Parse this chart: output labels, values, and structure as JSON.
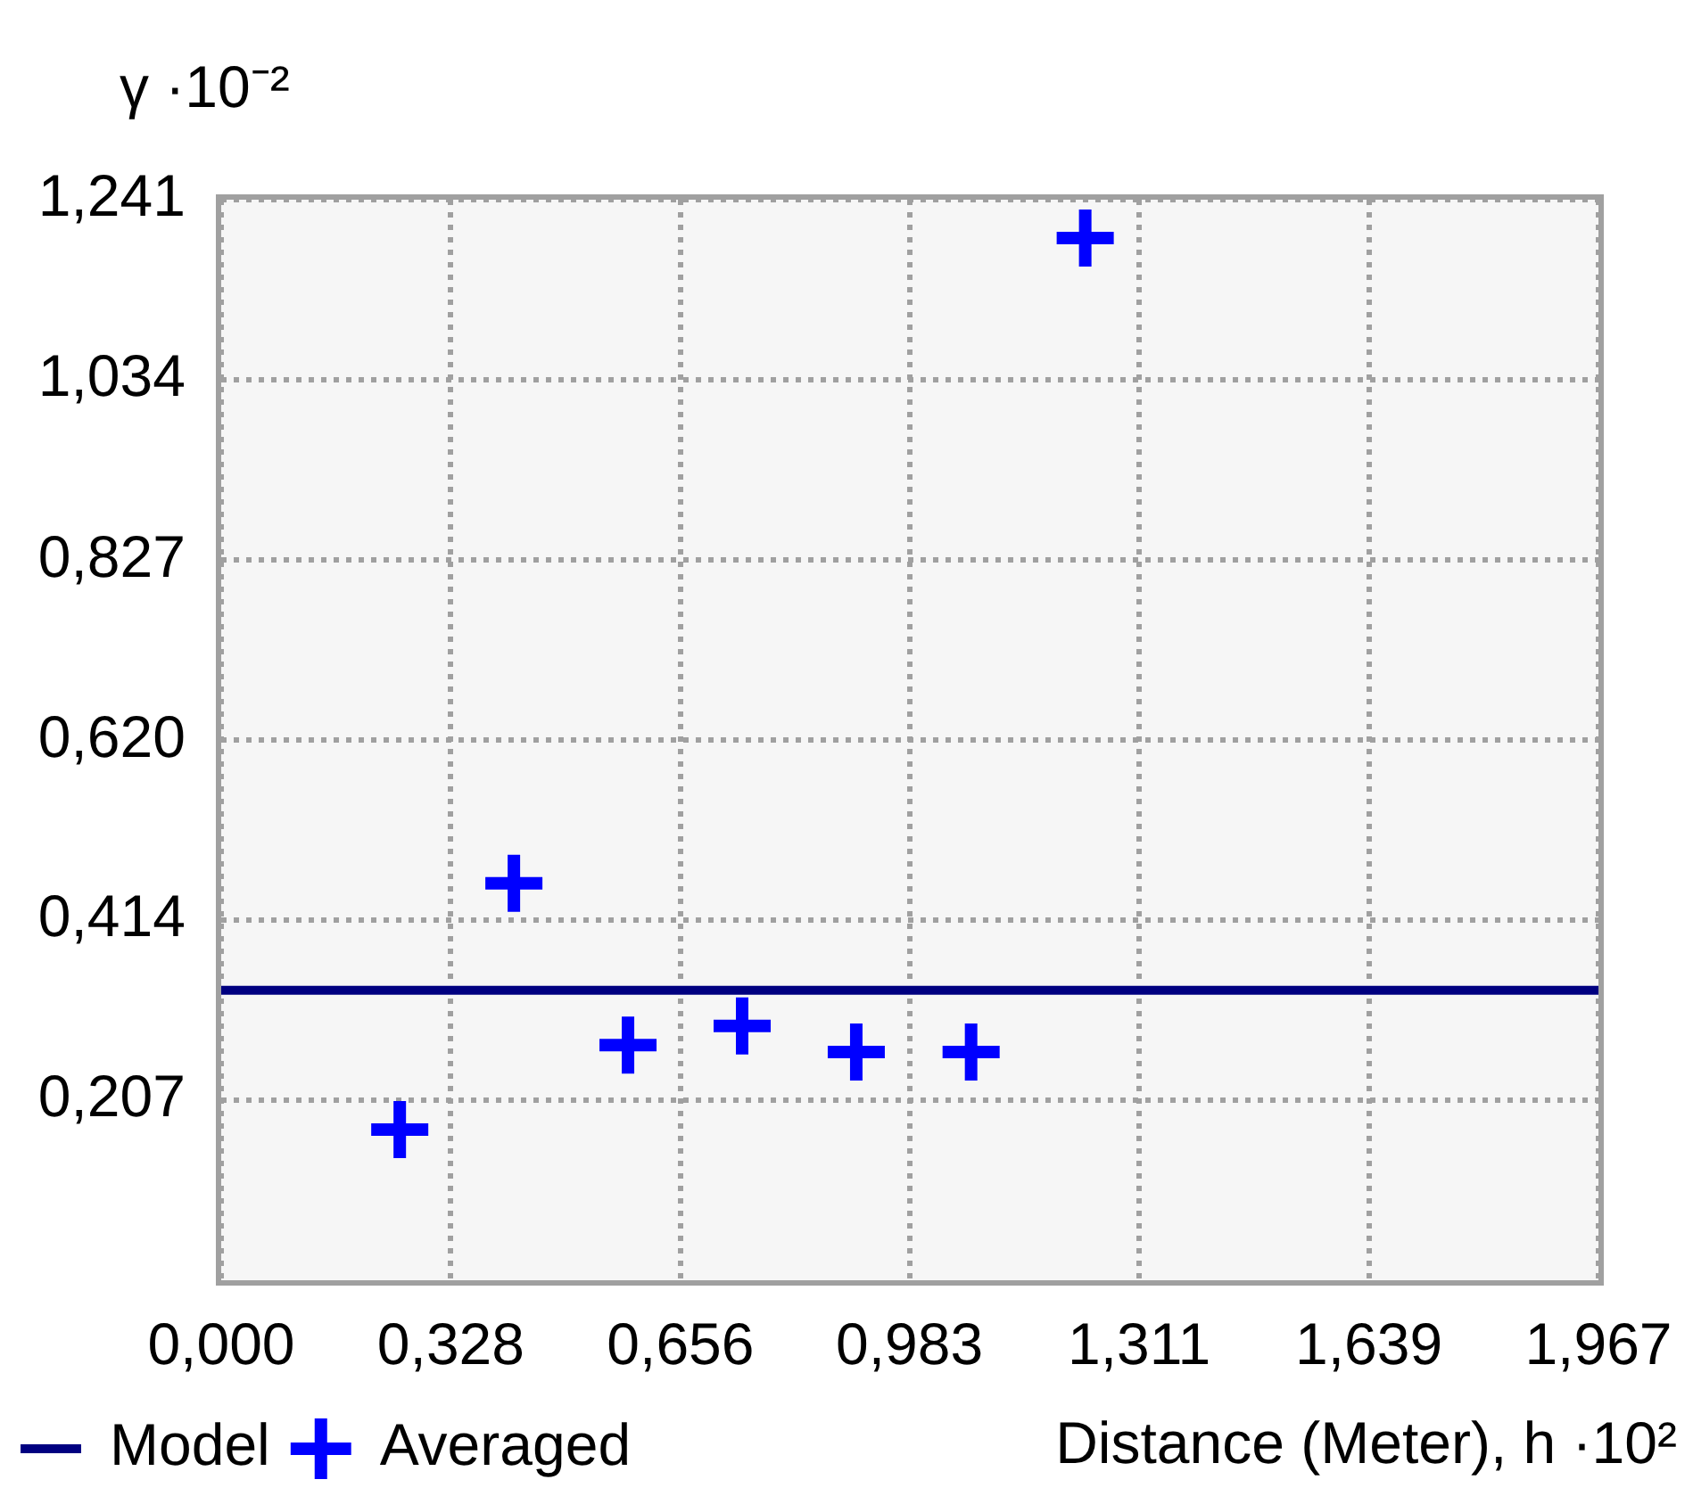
{
  "chart_data": {
    "type": "scatter",
    "xlabel": "Distance (Meter), h ·10²",
    "ylabel": "γ ·10⁻²",
    "xlim": [
      0,
      1.967
    ],
    "xticks": [
      {
        "value": 0,
        "label": "0,000"
      },
      {
        "value": 0.328,
        "label": "0,328"
      },
      {
        "value": 0.656,
        "label": "0,656"
      },
      {
        "value": 0.983,
        "label": "0,983"
      },
      {
        "value": 1.311,
        "label": "1,311"
      },
      {
        "value": 1.639,
        "label": "1,639"
      },
      {
        "value": 1.967,
        "label": "1,967"
      }
    ],
    "ylim": [
      0,
      1.241
    ],
    "yticks": [
      {
        "value": 0.207,
        "label": "0,207"
      },
      {
        "value": 0.414,
        "label": "0,414"
      },
      {
        "value": 0.62,
        "label": "0,620"
      },
      {
        "value": 0.827,
        "label": "0,827"
      },
      {
        "value": 1.034,
        "label": "1,034"
      },
      {
        "value": 1.241,
        "label": "1,241"
      }
    ],
    "grid": true,
    "legend": "bottom left",
    "series": [
      {
        "name": "Model",
        "type": "line",
        "color": "#000080",
        "marker": "none",
        "x": [
          0,
          1.967
        ],
        "values": [
          0.333,
          0.333
        ]
      },
      {
        "name": "Averaged",
        "type": "scatter",
        "color": "#0000ff",
        "marker": "cross",
        "x": [
          0.255,
          0.418,
          0.581,
          0.744,
          0.907,
          1.071,
          1.234
        ],
        "values": [
          0.173,
          0.456,
          0.27,
          0.292,
          0.262,
          0.262,
          1.197
        ]
      }
    ]
  }
}
